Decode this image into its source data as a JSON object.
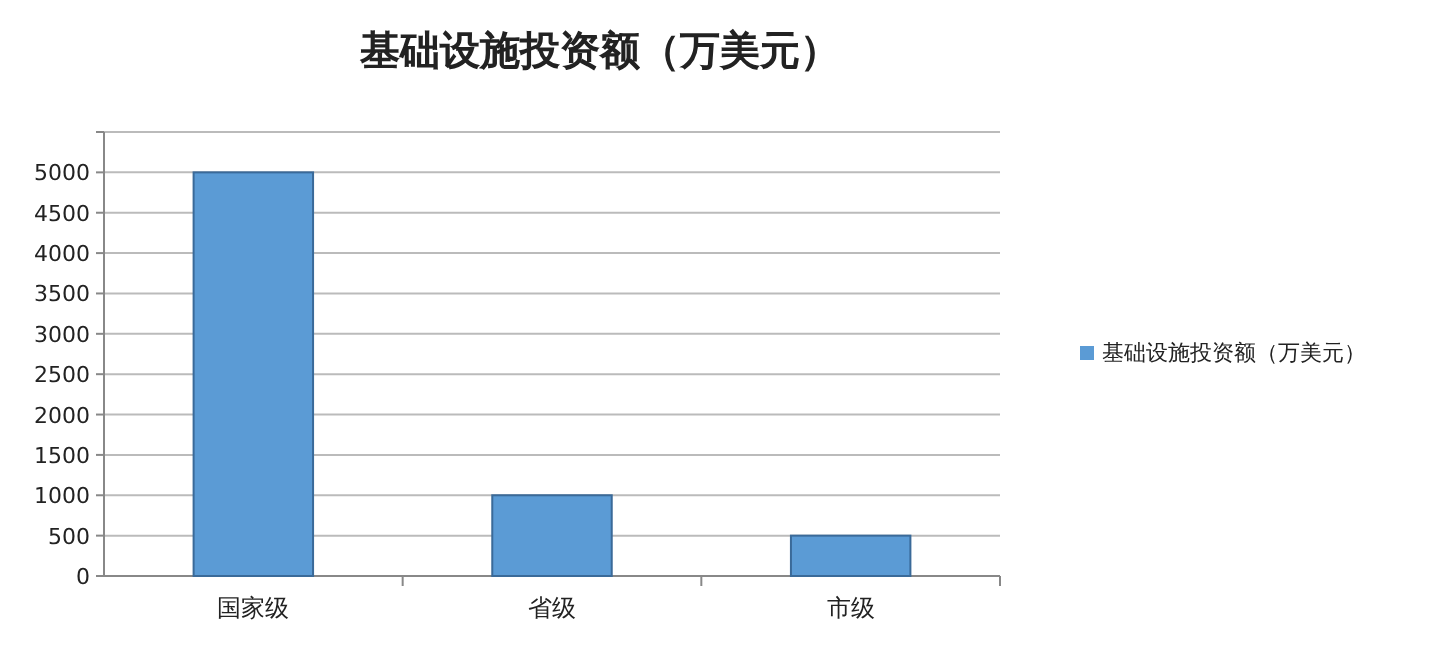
{
  "chart_data": {
    "type": "bar",
    "title": "基础设施投资额（万美元）",
    "categories": [
      "国家级",
      "省级",
      "市级"
    ],
    "series": [
      {
        "name": "基础设施投资额（万美元）",
        "color": "#5b9bd5",
        "values": [
          5000,
          1000,
          500
        ]
      }
    ],
    "ylim": [
      0,
      5500
    ],
    "yticks": [
      0,
      500,
      1000,
      1500,
      2000,
      2500,
      3000,
      3500,
      4000,
      4500,
      5000,
      {
        "value": 5500,
        "label": null
      }
    ],
    "grid": "y",
    "legend": "right"
  }
}
